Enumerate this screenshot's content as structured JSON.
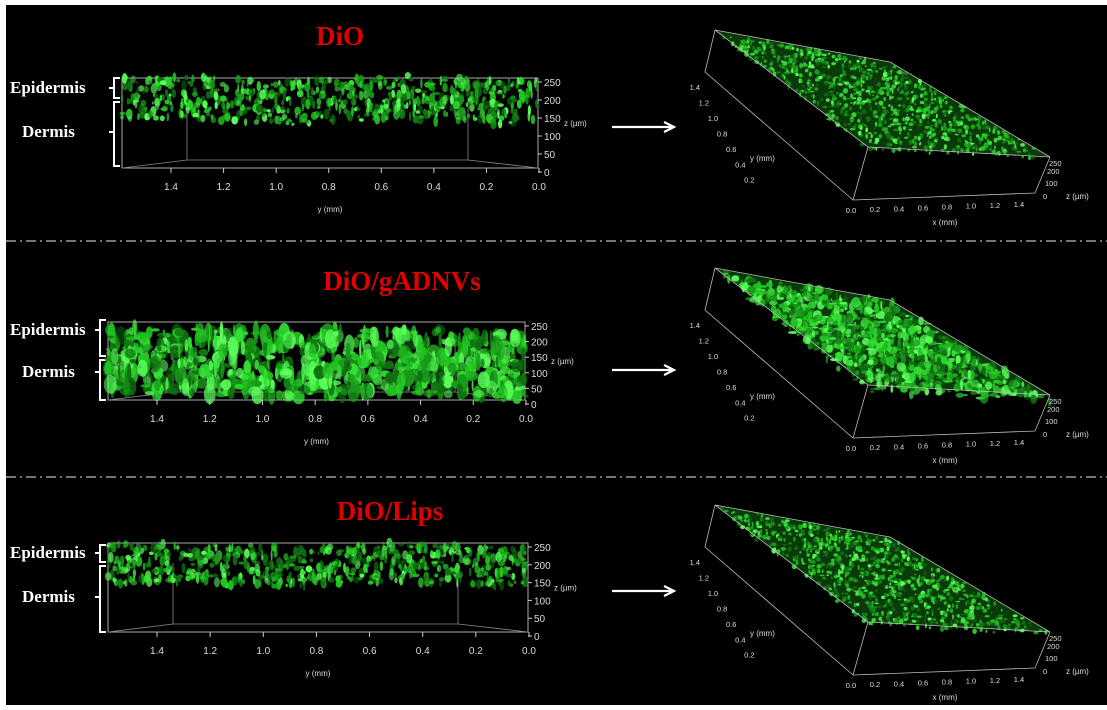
{
  "figure": {
    "separator_style": "dash-dot",
    "colors": {
      "background": "#000000",
      "title": "#e00000",
      "signal": "#22dd22",
      "axes": "#dddddd"
    },
    "panels": [
      {
        "title": "DiO",
        "layer_labels": {
          "epidermis": "Epidermis",
          "dermis": "Dermis"
        },
        "side_view": {
          "y_ticks": [
            "1.4",
            "1.2",
            "1.0",
            "0.8",
            "0.6",
            "0.4",
            "0.2",
            "0.0"
          ],
          "y_label": "y (mm)",
          "z_ticks": [
            "250",
            "200",
            "150",
            "100",
            "50",
            "0"
          ],
          "z_label": "z (µm)"
        },
        "view_3d": {
          "y_ticks": [
            "1.4",
            "1.2",
            "1.0",
            "0.8",
            "0.6",
            "0.4",
            "0.2"
          ],
          "y_label": "y (mm)",
          "x_ticks": [
            "0.0",
            "0.2",
            "0.4",
            "0.6",
            "0.8",
            "1.0",
            "1.2",
            "1.4"
          ],
          "x_label": "x (mm)",
          "z_ticks": [
            "250",
            "200",
            "100",
            "0"
          ],
          "z_label": "z (µm)"
        }
      },
      {
        "title": "DiO/gADNVs",
        "layer_labels": {
          "epidermis": "Epidermis",
          "dermis": "Dermis"
        },
        "side_view": {
          "y_ticks": [
            "1.4",
            "1.2",
            "1.0",
            "0.8",
            "0.6",
            "0.4",
            "0.2",
            "0.0"
          ],
          "y_label": "y (mm)",
          "z_ticks": [
            "250",
            "200",
            "150",
            "100",
            "50",
            "0"
          ],
          "z_label": "z (µm)"
        },
        "view_3d": {
          "y_ticks": [
            "1.4",
            "1.2",
            "1.0",
            "0.8",
            "0.6",
            "0.4",
            "0.2"
          ],
          "y_label": "y (mm)",
          "x_ticks": [
            "0.0",
            "0.2",
            "0.4",
            "0.6",
            "0.8",
            "1.0",
            "1.2",
            "1.4"
          ],
          "x_label": "x (mm)",
          "z_ticks": [
            "250",
            "200",
            "100",
            "0"
          ],
          "z_label": "z (µm)"
        }
      },
      {
        "title": "DiO/Lips",
        "layer_labels": {
          "epidermis": "Epidermis",
          "dermis": "Dermis"
        },
        "side_view": {
          "y_ticks": [
            "1.4",
            "1.2",
            "1.0",
            "0.8",
            "0.6",
            "0.4",
            "0.2",
            "0.0"
          ],
          "y_label": "y (mm)",
          "z_ticks": [
            "250",
            "200",
            "150",
            "100",
            "50",
            "0"
          ],
          "z_label": "z (µm)"
        },
        "view_3d": {
          "y_ticks": [
            "1.4",
            "1.2",
            "1.0",
            "0.8",
            "0.6",
            "0.4",
            "0.2"
          ],
          "y_label": "y (mm)",
          "x_ticks": [
            "0.0",
            "0.2",
            "0.4",
            "0.6",
            "0.8",
            "1.0",
            "1.2",
            "1.4"
          ],
          "x_label": "x (mm)",
          "z_ticks": [
            "250",
            "200",
            "100",
            "0"
          ],
          "z_label": "z (µm)"
        }
      }
    ]
  }
}
